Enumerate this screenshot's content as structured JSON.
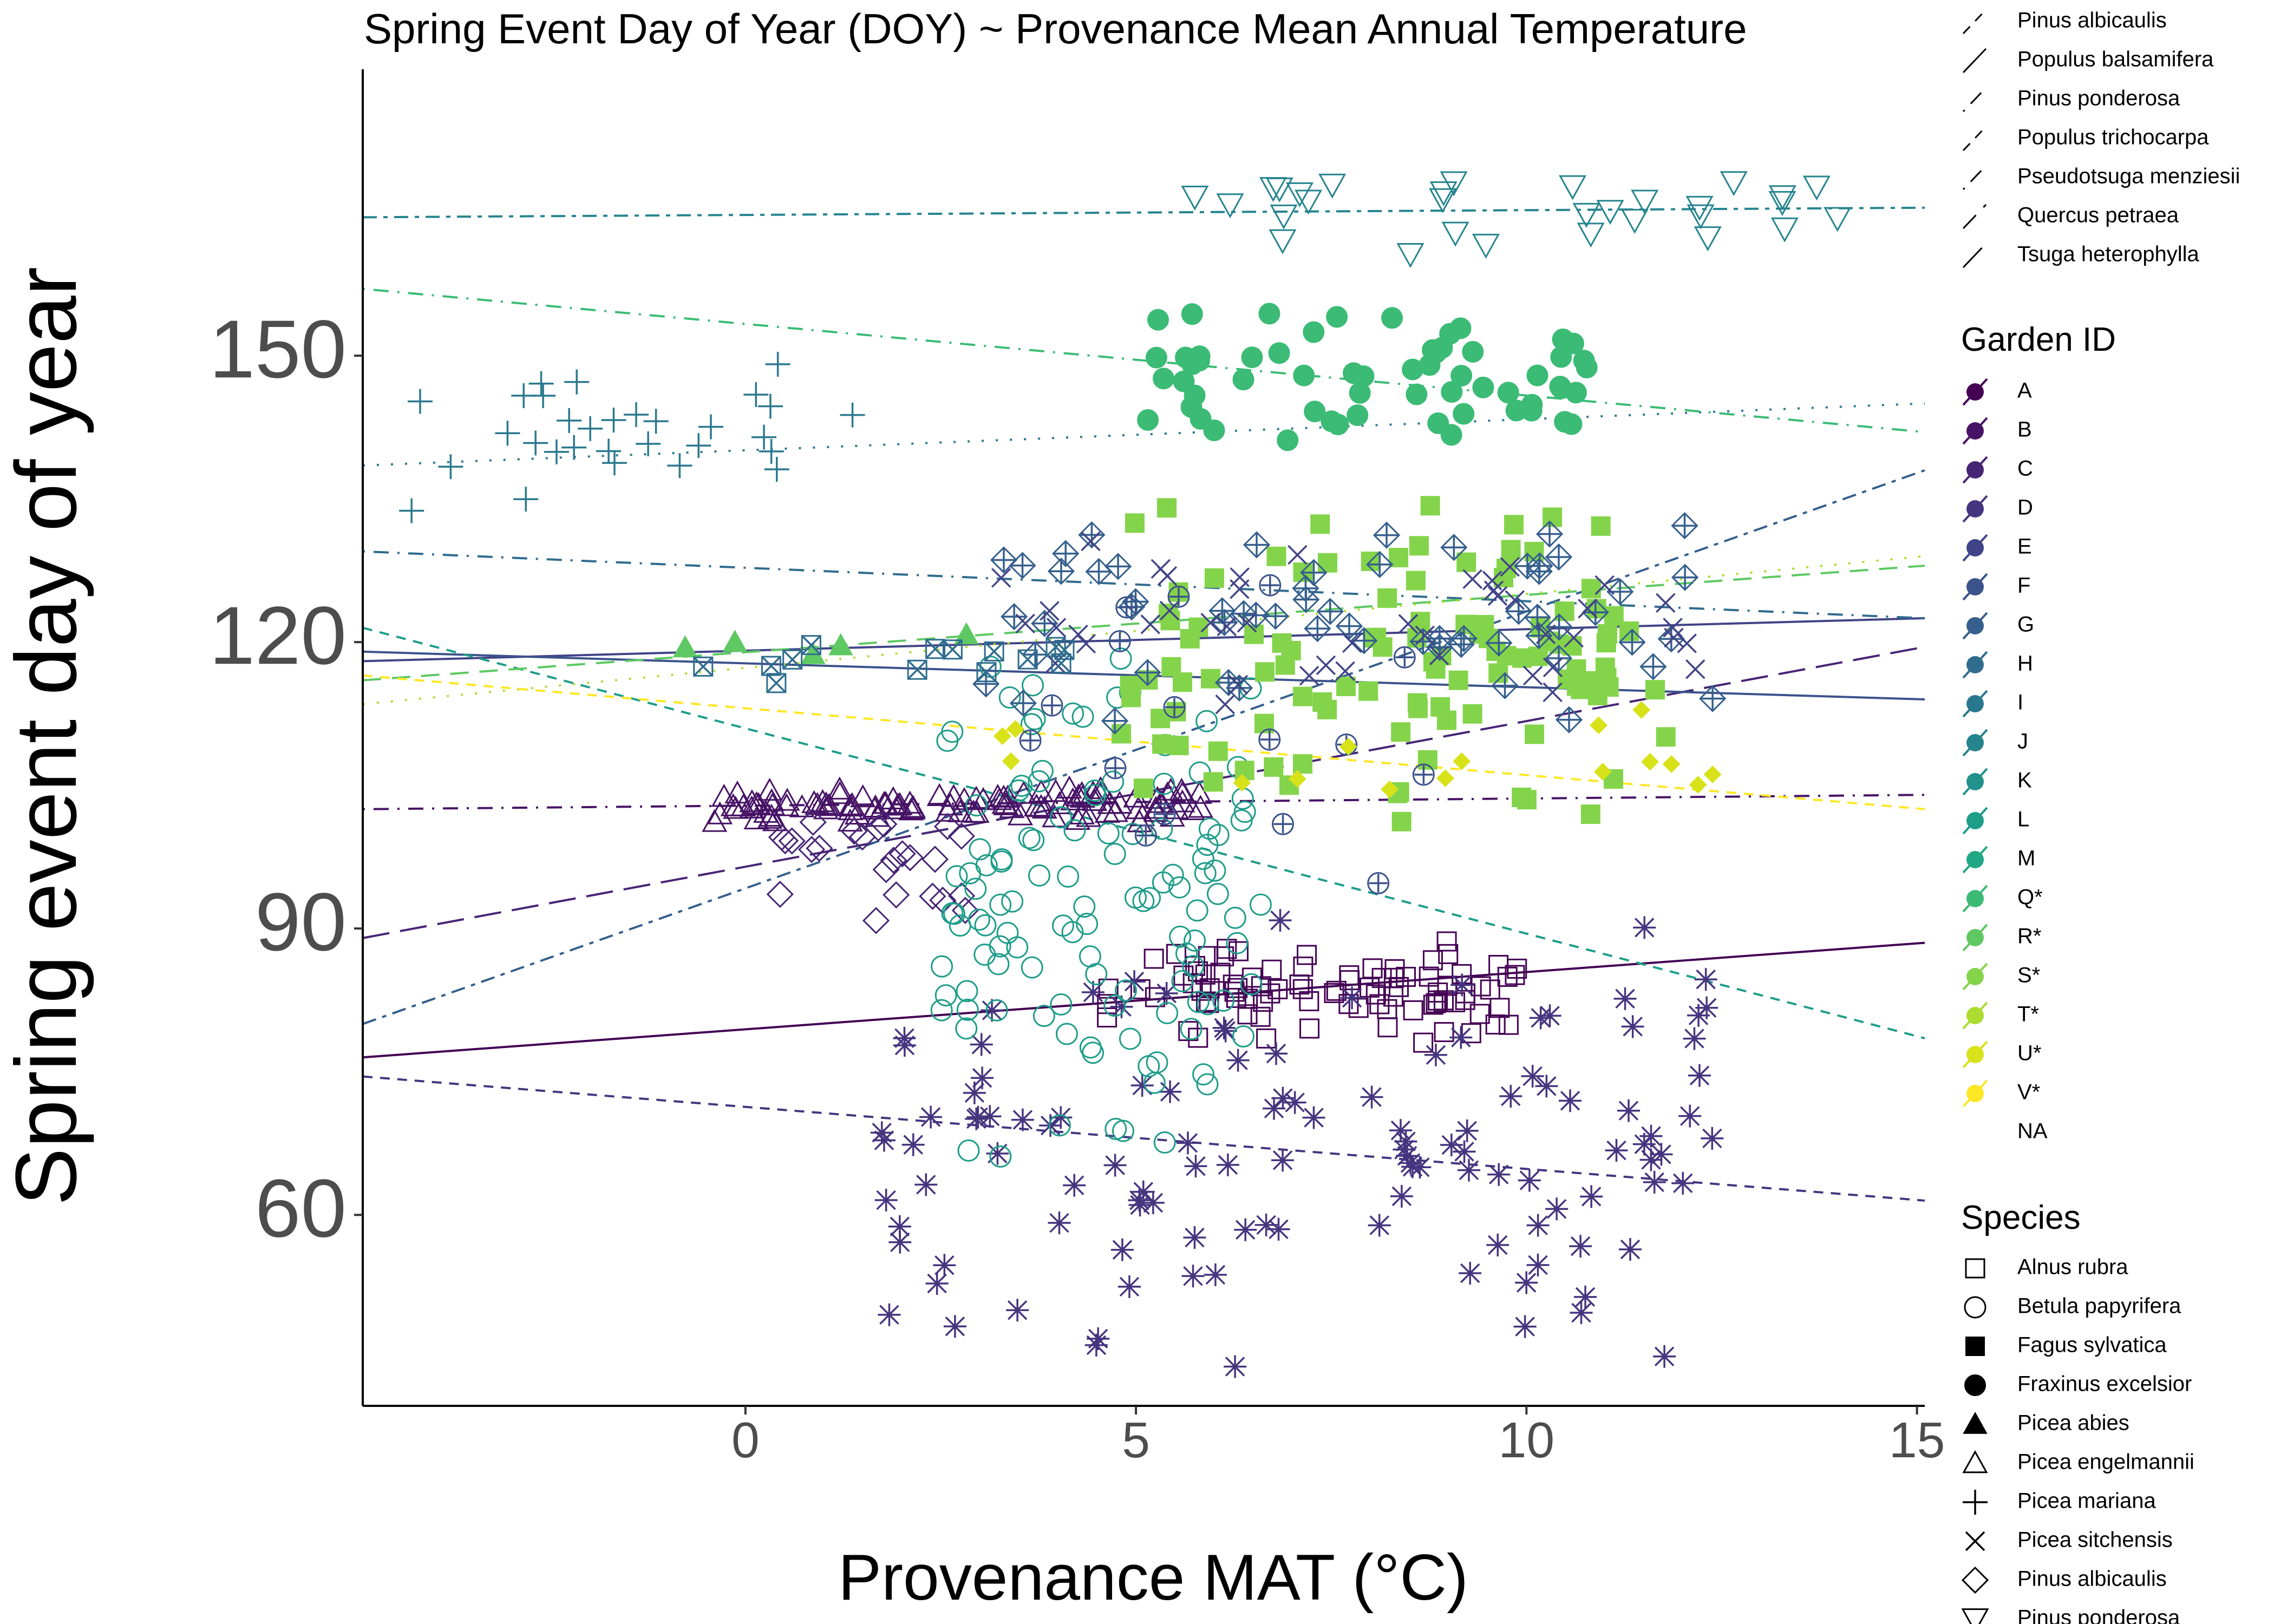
{
  "chart_data": {
    "type": "scatter",
    "title": "Spring Event Day of Year (DOY) ~ Provenance Mean Annual Temperature",
    "xlabel": "Provenance MAT (°C)",
    "ylabel": "Spring event day of year",
    "xlim": [
      -4.9,
      15.1
    ],
    "ylim": [
      40,
      180
    ],
    "x_ticks": [
      0,
      5,
      10,
      15
    ],
    "y_ticks": [
      60,
      90,
      120,
      150
    ],
    "grid": false,
    "legend_position": "right",
    "legends": {
      "linetype_labels": [
        "Pinus albicaulis",
        "Populus balsamifera",
        "Pinus ponderosa",
        "Populus trichocarpa",
        "Pseudotsuga menziesii",
        "Quercus petraea",
        "Tsuga heterophylla"
      ],
      "garden_title": "Garden ID",
      "garden_labels": [
        "A",
        "B",
        "C",
        "D",
        "E",
        "F",
        "G",
        "H",
        "I",
        "J",
        "K",
        "L",
        "M",
        "Q*",
        "R*",
        "S*",
        "T*",
        "U*",
        "V*",
        "NA"
      ],
      "species_title": "Species",
      "species_labels": [
        "Alnus rubra",
        "Betula papyrifera",
        "Fagus sylvatica",
        "Fraxinus excelsior",
        "Picea abies",
        "Picea engelmannii",
        "Picea mariana",
        "Picea sitchensis",
        "Pinus albicaulis",
        "Pinus ponderosa"
      ]
    },
    "garden_colors": {
      "A": "#440154",
      "B": "#471366",
      "C": "#472575",
      "D": "#45357f",
      "E": "#414487",
      "F": "#3b528b",
      "G": "#355f8d",
      "H": "#2f6c8e",
      "I": "#2a788e",
      "J": "#25848e",
      "K": "#21918c",
      "L": "#1e9d89",
      "M": "#22a884",
      "Q*": "#3bbb75",
      "R*": "#5ec962",
      "S*": "#84d44b",
      "T*": "#addc30",
      "U*": "#d8e219",
      "V*": "#fde725"
    },
    "series": [
      {
        "species": "Alnus rubra",
        "garden": "A",
        "marker": "square-open",
        "n": 90,
        "x_range": [
          4.6,
          9.9
        ],
        "y_range": [
          77,
          90
        ]
      },
      {
        "species": "Picea sitchensis",
        "garden": "D",
        "marker": "asterisk",
        "n": 120,
        "x_range": [
          1.7,
          12.4
        ],
        "y_range": [
          41,
          92
        ]
      },
      {
        "species": "Picea engelmannii",
        "garden": "B",
        "marker": "triangle-open",
        "n": 110,
        "x_range": [
          -0.4,
          6.0
        ],
        "y_range": [
          101,
          105
        ]
      },
      {
        "species": "Pinus albicaulis",
        "garden": "C",
        "marker": "diamond-open",
        "n": 24,
        "x_range": [
          0.3,
          3.0
        ],
        "y_range": [
          89,
          105
        ]
      },
      {
        "species": "Betula papyrifera",
        "garden": "L",
        "marker": "circle-open",
        "n": 120,
        "x_range": [
          2.5,
          6.6
        ],
        "y_range": [
          63,
          124
        ]
      },
      {
        "species": "Picea mariana",
        "garden": "I",
        "marker": "plus",
        "n": 30,
        "x_range": [
          -4.3,
          1.4
        ],
        "y_range": [
          132,
          150
        ]
      },
      {
        "species": "Pinus ponderosa",
        "garden": "J",
        "marker": "triangle-down-open",
        "n": 30,
        "x_range": [
          5.7,
          14.4
        ],
        "y_range": [
          160,
          172
        ]
      },
      {
        "species": "Fraxinus excelsior",
        "garden": "Q*",
        "marker": "circle",
        "n": 60,
        "x_range": [
          5.0,
          10.8
        ],
        "y_range": [
          140,
          156
        ]
      },
      {
        "species": "Fagus sylvatica",
        "garden": "S*",
        "marker": "square",
        "n": 110,
        "x_range": [
          4.8,
          11.8
        ],
        "y_range": [
          100,
          137
        ]
      },
      {
        "species": "Picea abies",
        "garden": "R*",
        "marker": "triangle",
        "n": 5,
        "x_range": [
          -1.0,
          3.8
        ],
        "y_range": [
          117,
          122
        ]
      },
      {
        "species": "Pinus albicaulis",
        "garden": "G",
        "marker": "diamond-cross-open",
        "n": 60,
        "x_range": [
          3.0,
          12.5
        ],
        "y_range": [
          111,
          134
        ]
      },
      {
        "species": "Picea sitchensis",
        "garden": "E",
        "marker": "x",
        "n": 45,
        "x_range": [
          3.2,
          12.2
        ],
        "y_range": [
          111,
          131
        ]
      },
      {
        "species": "Alnus rubra",
        "garden": "H",
        "marker": "square-x-open",
        "n": 14,
        "x_range": [
          -0.9,
          4.2
        ],
        "y_range": [
          114,
          121
        ]
      },
      {
        "species": "Betula papyrifera",
        "garden": "F",
        "marker": "circle-plus-open",
        "n": 16,
        "x_range": [
          3.1,
          9.3
        ],
        "y_range": [
          90,
          134
        ]
      },
      {
        "species": "Quercus petraea",
        "garden": "U*",
        "marker": "diamond",
        "n": 16,
        "x_range": [
          2.3,
          13.0
        ],
        "y_range": [
          100,
          115
        ]
      }
    ],
    "trend_lines": [
      {
        "garden": "A",
        "style": "solid",
        "x": [
          -4.9,
          15.1
        ],
        "y": [
          76.5,
          88.5
        ]
      },
      {
        "garden": "D",
        "style": "dashed-short",
        "x": [
          -4.9,
          15.1
        ],
        "y": [
          74.5,
          61.5
        ]
      },
      {
        "garden": "B",
        "style": "dotdash",
        "x": [
          -4.9,
          15.1
        ],
        "y": [
          102.5,
          104
        ]
      },
      {
        "garden": "C",
        "style": "longdash",
        "x": [
          -4.9,
          15.1
        ],
        "y": [
          89,
          119.5
        ]
      },
      {
        "garden": "E",
        "style": "solid",
        "x": [
          -4.9,
          15.1
        ],
        "y": [
          118,
          122.5
        ]
      },
      {
        "garden": "F",
        "style": "solid",
        "x": [
          -4.9,
          15.1
        ],
        "y": [
          119,
          114
        ]
      },
      {
        "garden": "G",
        "style": "twodash",
        "x": [
          -4.9,
          15.1
        ],
        "y": [
          80,
          138
        ]
      },
      {
        "garden": "H",
        "style": "dotdash",
        "x": [
          -4.9,
          15.1
        ],
        "y": [
          129.5,
          122.5
        ]
      },
      {
        "garden": "I",
        "style": "dotted",
        "x": [
          -4.9,
          15.1
        ],
        "y": [
          138.5,
          145
        ]
      },
      {
        "garden": "J",
        "style": "twodash",
        "x": [
          -4.9,
          15.1
        ],
        "y": [
          164.5,
          165.5
        ]
      },
      {
        "garden": "L",
        "style": "dashed-short",
        "x": [
          -4.9,
          15.1
        ],
        "y": [
          121.5,
          78.5
        ]
      },
      {
        "garden": "Q*",
        "style": "dotdash",
        "x": [
          -4.9,
          15.1
        ],
        "y": [
          157,
          142
        ]
      },
      {
        "garden": "R*",
        "style": "dashed",
        "x": [
          -4.9,
          15.1
        ],
        "y": [
          116,
          128
        ]
      },
      {
        "garden": "T*",
        "style": "dotted",
        "x": [
          -4.9,
          15.1
        ],
        "y": [
          113.5,
          129
        ]
      },
      {
        "garden": "V*",
        "style": "dashed-short",
        "x": [
          -4.9,
          15.1
        ],
        "y": [
          116.5,
          102.5
        ]
      }
    ]
  }
}
